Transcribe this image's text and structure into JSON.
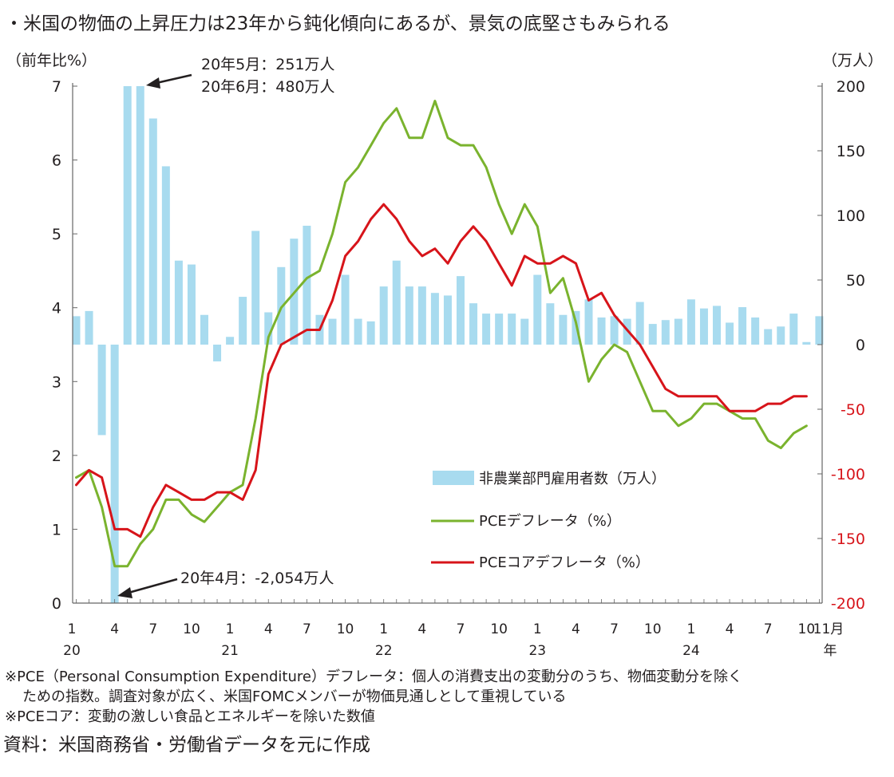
{
  "headline": "・米国の物価の上昇圧力は23年から鈍化傾向にあるが、景気の底堅さもみられる",
  "notes": {
    "pce_def_line1": "※PCE（Personal Consumption Expenditure）デフレータ：個人の消費支出の変動分のうち、物価変動分を除く",
    "pce_def_line2": "ための指数。調査対象が広く、米国FOMCメンバーが物価見通しとして重視している",
    "core_def": "※PCEコア：変動の激しい食品とエネルギーを除いた数値"
  },
  "source": "資料：米国商務省・労働省データを元に作成",
  "chart_data": {
    "type": "bar+line",
    "y_left_label": "（前年比%）",
    "y_right_label": "（万人）",
    "y_left_ticks": [
      "0",
      "1",
      "2",
      "3",
      "4",
      "5",
      "6",
      "7"
    ],
    "y_right_ticks": [
      "200",
      "150",
      "100",
      "50",
      "0",
      "-50",
      "-100",
      "-150",
      "-200"
    ],
    "ylim_left": [
      0,
      7
    ],
    "ylim_right": [
      -200,
      200
    ],
    "x_tick_labels": [
      "1",
      "4",
      "7",
      "10",
      "1",
      "4",
      "7",
      "10",
      "1",
      "4",
      "7",
      "10",
      "1",
      "4",
      "7",
      "10",
      "1",
      "4",
      "7",
      "10",
      "11月"
    ],
    "x_tick_months": [
      0,
      3,
      6,
      9,
      12,
      15,
      18,
      21,
      24,
      27,
      30,
      33,
      36,
      39,
      42,
      45,
      48,
      51,
      54,
      57,
      58
    ],
    "year_labels": [
      "20",
      "21",
      "22",
      "23",
      "24",
      "年"
    ],
    "year_label_months": [
      0,
      12,
      24,
      36,
      48,
      58
    ],
    "grid": false,
    "legend": {
      "placement": "center-right",
      "entries": [
        "非農業部門雇用者数（万人）",
        "PCEデフレータ（%）",
        "PCEコアデフレータ（%）"
      ]
    },
    "annotations": [
      "20年5月：251万人",
      "20年6月：480万人",
      "20年4月：-2,054万人"
    ],
    "colors": {
      "bars": "#a8dbef",
      "pce": "#7ab32e",
      "core": "#d7141a",
      "axis": "#666666"
    },
    "series": [
      {
        "name": "非農業部門雇用者数（万人）",
        "type": "bar",
        "axis": "right",
        "values": [
          22,
          26,
          -70,
          -200,
          200,
          200,
          175,
          138,
          65,
          62,
          23,
          -13,
          6,
          37,
          88,
          25,
          60,
          82,
          92,
          23,
          20,
          54,
          20,
          18,
          45,
          65,
          45,
          45,
          40,
          38,
          53,
          32,
          24,
          24,
          24,
          20,
          54,
          32,
          23,
          26,
          35,
          21,
          22,
          20,
          33,
          16,
          19,
          20,
          35,
          28,
          30,
          17,
          29,
          21,
          12,
          14,
          24,
          2,
          22
        ]
      },
      {
        "name": "PCEデフレータ（%）",
        "type": "line",
        "axis": "left",
        "values": [
          1.7,
          1.8,
          1.3,
          0.5,
          0.5,
          0.8,
          1.0,
          1.4,
          1.4,
          1.2,
          1.1,
          1.3,
          1.5,
          1.6,
          2.5,
          3.6,
          4.0,
          4.2,
          4.4,
          4.5,
          5.0,
          5.7,
          5.9,
          6.2,
          6.5,
          6.7,
          6.3,
          6.3,
          6.8,
          6.3,
          6.2,
          6.2,
          5.9,
          5.4,
          5.0,
          5.4,
          5.1,
          4.2,
          4.4,
          3.8,
          3.0,
          3.3,
          3.5,
          3.4,
          3.0,
          2.6,
          2.6,
          2.4,
          2.5,
          2.7,
          2.7,
          2.6,
          2.5,
          2.5,
          2.2,
          2.1,
          2.3,
          2.4
        ]
      },
      {
        "name": "PCEコアデフレータ（%）",
        "type": "line",
        "axis": "left",
        "values": [
          1.6,
          1.8,
          1.7,
          1.0,
          1.0,
          0.9,
          1.3,
          1.6,
          1.5,
          1.4,
          1.4,
          1.5,
          1.5,
          1.4,
          1.8,
          3.1,
          3.5,
          3.6,
          3.7,
          3.7,
          4.1,
          4.7,
          4.9,
          5.2,
          5.4,
          5.2,
          4.9,
          4.7,
          4.8,
          4.6,
          4.9,
          5.1,
          4.9,
          4.6,
          4.3,
          4.7,
          4.6,
          4.6,
          4.7,
          4.6,
          4.1,
          4.2,
          3.9,
          3.7,
          3.5,
          3.2,
          2.9,
          2.8,
          2.8,
          2.8,
          2.8,
          2.6,
          2.6,
          2.6,
          2.7,
          2.7,
          2.8,
          2.8
        ]
      }
    ]
  }
}
